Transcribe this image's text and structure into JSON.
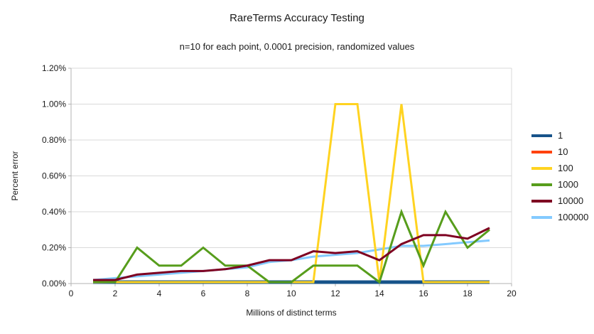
{
  "chart_data": {
    "type": "line",
    "title": "RareTerms Accuracy Testing",
    "subtitle": "n=10 for each point, 0.0001 precision, randomized values",
    "xlabel": "Millions of distinct terms",
    "ylabel": "Percent error",
    "xlim": [
      0,
      20
    ],
    "ylim_percent": [
      0,
      1.2
    ],
    "grid": "horizontal",
    "legend_position": "right",
    "x_tick_labels": [
      "0",
      "2",
      "4",
      "6",
      "8",
      "10",
      "12",
      "14",
      "16",
      "18",
      "20"
    ],
    "x_tick_values": [
      0,
      2,
      4,
      6,
      8,
      10,
      12,
      14,
      16,
      18,
      20
    ],
    "y_tick_labels": [
      "0.00%",
      "0.20%",
      "0.40%",
      "0.60%",
      "0.80%",
      "1.00%",
      "1.20%"
    ],
    "y_tick_values": [
      0,
      0.2,
      0.4,
      0.6,
      0.8,
      1.0,
      1.2
    ],
    "x": [
      1,
      2,
      3,
      4,
      5,
      6,
      7,
      8,
      9,
      10,
      11,
      12,
      13,
      14,
      15,
      16,
      17,
      18,
      19
    ],
    "series": [
      {
        "name": "1",
        "color": "#17538a",
        "width": 5,
        "values": [
          0,
          0,
          0,
          0,
          0,
          0,
          0,
          0,
          0,
          0,
          0,
          0,
          0,
          0,
          0,
          0,
          0,
          0,
          0
        ]
      },
      {
        "name": "10",
        "color": "#ff420e",
        "width": 3,
        "values": [
          0,
          0,
          0,
          0,
          0,
          0,
          0,
          0,
          0,
          0,
          0,
          0,
          0,
          0,
          0,
          0,
          0,
          0,
          0
        ]
      },
      {
        "name": "100",
        "color": "#ffd320",
        "width": 3,
        "values": [
          0,
          0,
          0,
          0,
          0,
          0,
          0,
          0,
          0,
          0,
          0,
          1.0,
          1.0,
          0,
          1.0,
          0,
          0,
          0,
          0
        ]
      },
      {
        "name": "1000",
        "color": "#579d1c",
        "width": 3,
        "values": [
          0.01,
          0,
          0.2,
          0.1,
          0.1,
          0.2,
          0.1,
          0.1,
          0,
          0,
          0.1,
          0.1,
          0.1,
          0,
          0.4,
          0.1,
          0.4,
          0.2,
          0.3
        ]
      },
      {
        "name": "10000",
        "color": "#7e0021",
        "width": 3,
        "values": [
          0.02,
          0.02,
          0.05,
          0.06,
          0.07,
          0.07,
          0.08,
          0.1,
          0.13,
          0.13,
          0.18,
          0.17,
          0.18,
          0.13,
          0.22,
          0.27,
          0.27,
          0.25,
          0.31
        ]
      },
      {
        "name": "100000",
        "color": "#83caff",
        "width": 3,
        "values": [
          0.02,
          0.03,
          0.04,
          0.05,
          0.06,
          0.07,
          0.08,
          0.09,
          0.12,
          0.13,
          0.15,
          0.16,
          0.17,
          0.19,
          0.21,
          0.21,
          0.22,
          0.23,
          0.24
        ]
      }
    ],
    "draw_order": [
      "10",
      "1",
      "100000",
      "100",
      "1000",
      "10000"
    ],
    "colors": {
      "gridline": "#d9d9d9",
      "axis": "#b3b3b3",
      "tick_text": "#1a1a1a"
    }
  }
}
